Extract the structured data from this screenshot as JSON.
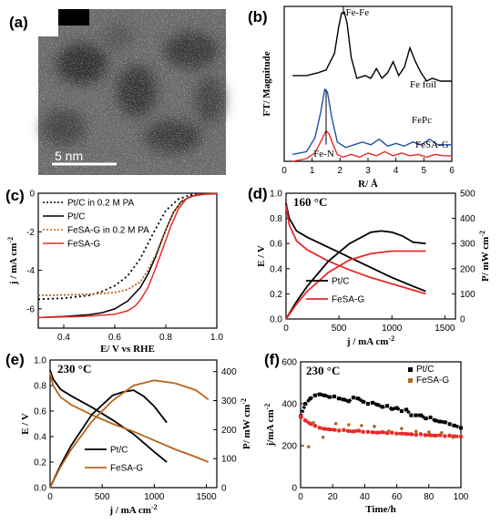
{
  "panel_labels": [
    "(a)",
    "(b)",
    "(c)",
    "(d)",
    "(e)",
    "(f)"
  ],
  "panel_a": {
    "scale_bar": "5  nm"
  },
  "chart_data": [
    {
      "id": "b",
      "type": "line",
      "xlabel": "R/ Å",
      "ylabel": "FT/ Magnitude",
      "xlim": [
        0,
        6
      ],
      "xticks": [
        0,
        1,
        2,
        3,
        4,
        5,
        6
      ],
      "annotations": [
        "Fe-Fe",
        "Fe-N"
      ],
      "series": [
        {
          "name": "Fe foil",
          "color": "#000000",
          "x": [
            0.3,
            0.8,
            1.2,
            1.5,
            1.8,
            1.95,
            2.05,
            2.15,
            2.25,
            2.4,
            2.6,
            2.9,
            3.1,
            3.3,
            3.5,
            3.7,
            3.9,
            4.1,
            4.3,
            4.5,
            4.7,
            4.9,
            5.1,
            5.3,
            5.6,
            6.0
          ],
          "y": [
            0.62,
            0.62,
            0.64,
            0.66,
            0.78,
            0.97,
            1.07,
            1.08,
            1.0,
            0.75,
            0.6,
            0.62,
            0.6,
            0.67,
            0.6,
            0.64,
            0.72,
            0.62,
            0.68,
            0.82,
            0.72,
            0.64,
            0.58,
            0.6,
            0.58,
            0.58
          ]
        },
        {
          "name": "FePc",
          "color": "#1f4fa8",
          "x": [
            0.3,
            0.8,
            1.1,
            1.3,
            1.45,
            1.55,
            1.7,
            1.9,
            2.2,
            2.5,
            2.8,
            3.1,
            3.4,
            3.7,
            4.0,
            4.3,
            4.6,
            4.9,
            5.2,
            5.5,
            6.0
          ],
          "y": [
            0.05,
            0.07,
            0.17,
            0.35,
            0.52,
            0.5,
            0.32,
            0.14,
            0.1,
            0.12,
            0.14,
            0.12,
            0.16,
            0.11,
            0.13,
            0.11,
            0.14,
            0.12,
            0.16,
            0.12,
            0.12
          ]
        },
        {
          "name": "FeSA-G",
          "color": "#e82a2a",
          "x": [
            0.3,
            0.8,
            1.1,
            1.3,
            1.5,
            1.6,
            1.75,
            1.9,
            2.1,
            2.4,
            2.7,
            3.0,
            3.3,
            3.6,
            3.9,
            4.2,
            4.5,
            4.8,
            5.1,
            5.4,
            5.7,
            6.0
          ],
          "y": [
            0.0,
            0.02,
            0.06,
            0.14,
            0.22,
            0.2,
            0.12,
            0.05,
            0.03,
            0.05,
            0.03,
            0.06,
            0.04,
            0.07,
            0.04,
            0.06,
            0.04,
            0.05,
            0.03,
            0.05,
            0.04,
            0.04
          ]
        }
      ]
    },
    {
      "id": "c",
      "type": "line",
      "xlabel": "E/ V vs RHE",
      "ylabel": "j / mA cm",
      "xlim": [
        0.3,
        1.0
      ],
      "ylim": [
        -7,
        0
      ],
      "xticks": [
        0.4,
        0.6,
        0.8,
        1.0
      ],
      "yticks": [
        -6,
        -4,
        -2,
        0
      ],
      "legend": "top-left",
      "series": [
        {
          "name": "Pt/C in 0.2 M PA",
          "color": "#000000",
          "style": "dotted",
          "x": [
            0.3,
            0.4,
            0.5,
            0.55,
            0.6,
            0.65,
            0.7,
            0.75,
            0.8,
            0.85,
            0.9,
            0.95,
            1.0
          ],
          "y": [
            -5.5,
            -5.45,
            -5.3,
            -5.1,
            -4.8,
            -4.3,
            -3.4,
            -2.1,
            -0.9,
            -0.3,
            -0.08,
            -0.03,
            -0.02
          ]
        },
        {
          "name": "Pt/C",
          "color": "#000000",
          "style": "solid",
          "x": [
            0.3,
            0.4,
            0.5,
            0.55,
            0.6,
            0.65,
            0.7,
            0.73,
            0.76,
            0.8,
            0.83,
            0.86,
            0.9,
            0.95,
            1.0
          ],
          "y": [
            -6.45,
            -6.4,
            -6.3,
            -6.2,
            -6.0,
            -5.6,
            -4.9,
            -4.2,
            -3.3,
            -1.9,
            -1.0,
            -0.45,
            -0.15,
            -0.05,
            -0.03
          ]
        },
        {
          "name": "FeSA-G in 0.2 M PA",
          "color": "#b5651d",
          "style": "dotted",
          "x": [
            0.3,
            0.4,
            0.5,
            0.6,
            0.65,
            0.7,
            0.73,
            0.76,
            0.8,
            0.83,
            0.86,
            0.9,
            0.95,
            1.0
          ],
          "y": [
            -5.3,
            -5.28,
            -5.25,
            -5.15,
            -5.0,
            -4.6,
            -4.0,
            -3.2,
            -1.9,
            -1.0,
            -0.45,
            -0.15,
            -0.05,
            -0.03
          ]
        },
        {
          "name": "FeSA-G",
          "color": "#e82a2a",
          "style": "solid",
          "x": [
            0.3,
            0.4,
            0.5,
            0.6,
            0.65,
            0.68,
            0.7,
            0.73,
            0.76,
            0.79,
            0.82,
            0.85,
            0.88,
            0.92,
            0.96,
            1.0
          ],
          "y": [
            -6.45,
            -6.42,
            -6.38,
            -6.28,
            -6.1,
            -5.85,
            -5.55,
            -4.9,
            -3.9,
            -2.8,
            -1.7,
            -0.8,
            -0.3,
            -0.08,
            -0.03,
            -0.02
          ]
        }
      ]
    },
    {
      "id": "d",
      "type": "line",
      "dual_axis": true,
      "annotation": "160 °C",
      "xlabel": "j / mA cm",
      "ylabel": "E / V",
      "y2label": "P/ mW cm",
      "xlim": [
        0,
        1600
      ],
      "ylim": [
        0,
        1.0
      ],
      "y2lim": [
        0,
        500
      ],
      "xticks": [
        0,
        500,
        1000,
        1500
      ],
      "yticks": [
        0.0,
        0.2,
        0.4,
        0.6,
        0.8,
        1.0
      ],
      "y2ticks": [
        0,
        100,
        200,
        300,
        400,
        500
      ],
      "legend": "bottom-center",
      "series": [
        {
          "name": "Pt/C",
          "color": "#000000",
          "kind": "E",
          "x": [
            0,
            30,
            100,
            200,
            400,
            600,
            800,
            1000,
            1200,
            1320
          ],
          "y": [
            0.92,
            0.8,
            0.7,
            0.65,
            0.57,
            0.49,
            0.41,
            0.33,
            0.26,
            0.22
          ]
        },
        {
          "name": "FeSA-G",
          "color": "#e82a2a",
          "kind": "E",
          "x": [
            0,
            30,
            100,
            200,
            400,
            600,
            800,
            1000,
            1200,
            1320
          ],
          "y": [
            0.9,
            0.75,
            0.62,
            0.55,
            0.46,
            0.39,
            0.33,
            0.28,
            0.23,
            0.2
          ]
        },
        {
          "name": "Pt/C",
          "color": "#000000",
          "kind": "P",
          "x": [
            0,
            100,
            200,
            400,
            600,
            800,
            900,
            1000,
            1100,
            1200,
            1320
          ],
          "y": [
            0,
            70,
            130,
            230,
            300,
            345,
            350,
            345,
            330,
            305,
            300
          ]
        },
        {
          "name": "FeSA-G",
          "color": "#e82a2a",
          "kind": "P",
          "x": [
            0,
            100,
            200,
            400,
            600,
            800,
            1000,
            1100,
            1200,
            1320
          ],
          "y": [
            0,
            60,
            110,
            185,
            235,
            260,
            270,
            270,
            270,
            270
          ]
        }
      ]
    },
    {
      "id": "e",
      "type": "line",
      "dual_axis": true,
      "annotation": "230 °C",
      "xlabel": "j / mA cm",
      "ylabel": "E / V",
      "y2label": "P/ mW cm",
      "xlim": [
        0,
        1600
      ],
      "ylim": [
        0,
        1.0
      ],
      "y2lim": [
        0,
        440
      ],
      "xticks": [
        0,
        500,
        1000,
        1500
      ],
      "yticks": [
        0.0,
        0.2,
        0.4,
        0.6,
        0.8,
        1.0
      ],
      "y2ticks": [
        0,
        100,
        200,
        300,
        400
      ],
      "legend": "bottom-center",
      "series": [
        {
          "name": "Pt/C",
          "color": "#000000",
          "kind": "E",
          "x": [
            0,
            30,
            100,
            200,
            400,
            600,
            800,
            1000,
            1120
          ],
          "y": [
            0.92,
            0.85,
            0.77,
            0.72,
            0.63,
            0.53,
            0.42,
            0.28,
            0.2
          ]
        },
        {
          "name": "FeSA-G",
          "color": "#b5651d",
          "kind": "E",
          "x": [
            0,
            30,
            100,
            200,
            400,
            600,
            800,
            1000,
            1200,
            1400,
            1520
          ],
          "y": [
            0.9,
            0.8,
            0.71,
            0.65,
            0.57,
            0.5,
            0.44,
            0.37,
            0.3,
            0.24,
            0.2
          ]
        },
        {
          "name": "Pt/C",
          "color": "#000000",
          "kind": "P",
          "x": [
            0,
            100,
            200,
            400,
            600,
            700,
            800,
            900,
            1000,
            1120
          ],
          "y": [
            0,
            77,
            144,
            252,
            318,
            330,
            336,
            315,
            280,
            224
          ]
        },
        {
          "name": "FeSA-G",
          "color": "#b5651d",
          "kind": "P",
          "x": [
            0,
            100,
            200,
            400,
            600,
            800,
            1000,
            1200,
            1400,
            1520
          ],
          "y": [
            0,
            71,
            130,
            228,
            300,
            352,
            370,
            360,
            336,
            304
          ]
        }
      ]
    },
    {
      "id": "f",
      "type": "scatter",
      "annotation": "230 °C",
      "xlabel": "Time/h",
      "ylabel": "j/mA cm",
      "xlim": [
        0,
        100
      ],
      "ylim": [
        0,
        600
      ],
      "xticks": [
        0,
        20,
        40,
        60,
        80,
        100
      ],
      "yticks": [
        0,
        200,
        400,
        600
      ],
      "legend": "top-right",
      "series": [
        {
          "name": "Pt/C",
          "color": "#000000",
          "x": [
            0,
            3,
            6,
            9,
            12,
            15,
            18,
            21,
            24,
            27,
            30,
            33,
            36,
            39,
            42,
            45,
            48,
            51,
            54,
            57,
            60,
            63,
            66,
            69,
            72,
            75,
            78,
            81,
            84,
            87,
            90,
            93,
            96,
            100
          ],
          "y": [
            340,
            400,
            425,
            440,
            445,
            440,
            432,
            435,
            425,
            420,
            412,
            430,
            425,
            410,
            400,
            405,
            395,
            385,
            390,
            375,
            380,
            365,
            372,
            345,
            345,
            345,
            330,
            335,
            320,
            315,
            312,
            303,
            296,
            285
          ]
        },
        {
          "name": "FeSA-G",
          "color": "#e82a2a",
          "x": [
            0,
            3,
            6,
            9,
            12,
            15,
            18,
            21,
            24,
            27,
            30,
            33,
            36,
            39,
            42,
            45,
            48,
            51,
            54,
            57,
            60,
            63,
            66,
            69,
            72,
            75,
            78,
            81,
            84,
            87,
            90,
            93,
            96,
            100
          ],
          "y": [
            340,
            320,
            305,
            295,
            285,
            280,
            278,
            276,
            272,
            275,
            270,
            268,
            272,
            266,
            266,
            264,
            262,
            265,
            260,
            262,
            258,
            258,
            256,
            255,
            252,
            255,
            250,
            250,
            248,
            250,
            246,
            248,
            245,
            243
          ]
        },
        {
          "name": "FeSA-G",
          "color": "#b5651d",
          "x": [
            5,
            8,
            14,
            22,
            30,
            38,
            46,
            55,
            63,
            72,
            80,
            88,
            95
          ],
          "y": [
            195,
            310,
            240,
            305,
            300,
            296,
            292,
            270,
            282,
            268,
            265,
            262,
            240
          ]
        }
      ]
    }
  ]
}
